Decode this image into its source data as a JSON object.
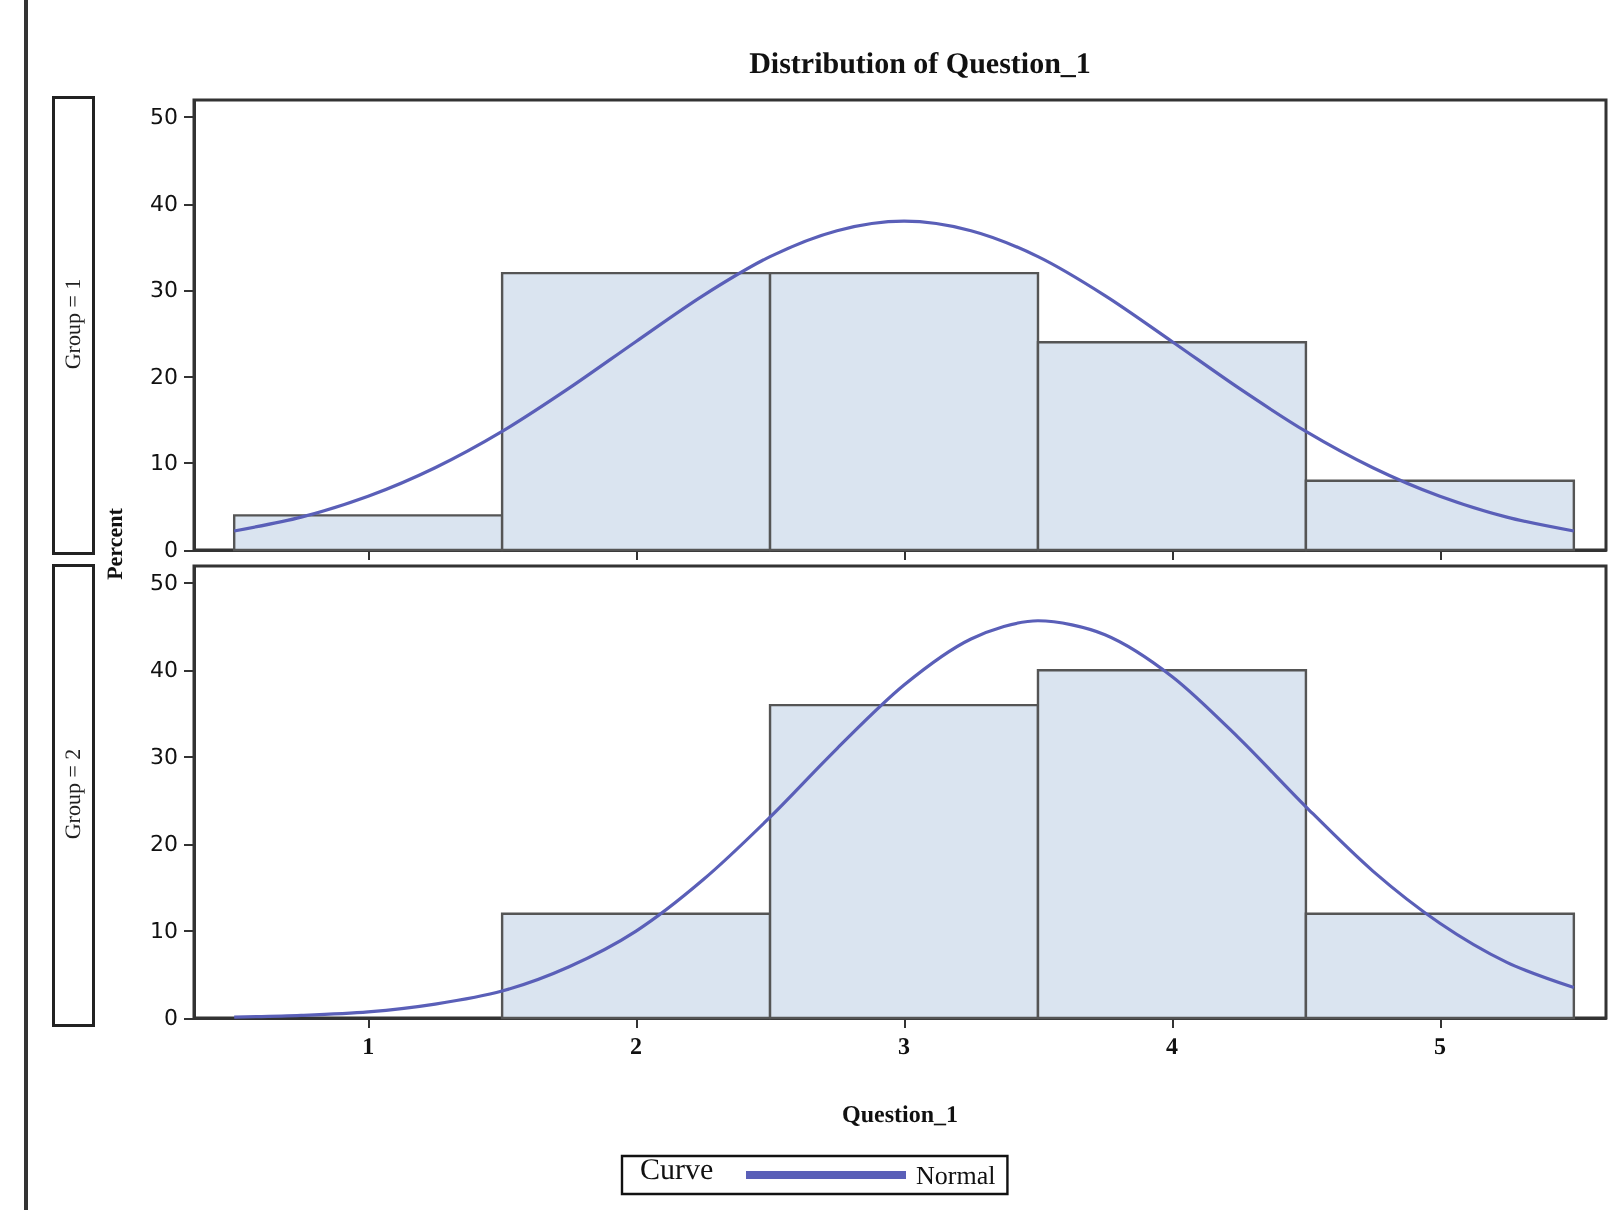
{
  "chart_data": [
    {
      "type": "histogram",
      "title": "Distribution of Question_1",
      "ylabel": "Percent",
      "annotations": [
        "Group = 1"
      ],
      "bins": [
        0.5,
        1.5,
        2.5,
        3.5,
        4.5,
        5.5
      ],
      "series": [
        {
          "color": "#dae4f0",
          "values": [
            4,
            32,
            32,
            24,
            8
          ]
        },
        {
          "type": "line",
          "color": "#5a5fb8",
          "x": [
            0.5,
            0.75,
            1.0,
            1.25,
            1.5,
            1.75,
            2.0,
            2.25,
            2.5,
            2.75,
            3.0,
            3.25,
            3.5,
            3.75,
            4.0,
            4.25,
            4.5,
            4.75,
            5.0,
            5.25,
            5.5
          ],
          "values": [
            2.2,
            3.8,
            6.2,
            9.5,
            13.7,
            18.7,
            24.1,
            29.4,
            33.9,
            36.9,
            38.0,
            36.9,
            33.9,
            29.4,
            24.1,
            18.7,
            13.7,
            9.5,
            6.2,
            3.8,
            2.2
          ]
        }
      ],
      "xlim": [
        0.35,
        5.62
      ],
      "xticks": [
        1,
        2,
        3,
        4,
        5
      ],
      "ylim": [
        0,
        52
      ],
      "yticks": [
        0,
        10,
        20,
        30,
        40,
        50
      ],
      "tick_labels": "y",
      "grid": false,
      "legend": false
    },
    {
      "type": "histogram",
      "xlabel": "Question_1",
      "annotations": [
        "Group = 2"
      ],
      "legend_title": "Curve",
      "bins": [
        0.5,
        1.5,
        2.5,
        3.5,
        4.5,
        5.5
      ],
      "series": [
        {
          "color": "#dae4f0",
          "values": [
            0,
            12,
            36,
            40,
            12
          ]
        },
        {
          "type": "line",
          "name": "Normal",
          "color": "#5a5fb8",
          "x": [
            0.5,
            0.75,
            1.0,
            1.25,
            1.5,
            1.75,
            2.0,
            2.25,
            2.5,
            2.75,
            3.0,
            3.25,
            3.5,
            3.75,
            4.0,
            4.25,
            4.5,
            4.75,
            5.0,
            5.25,
            5.5
          ],
          "values": [
            0.1,
            0.3,
            0.7,
            1.6,
            3.1,
            5.9,
            10.0,
            15.9,
            23.1,
            31.0,
            38.3,
            43.6,
            45.7,
            44.1,
            39.3,
            32.2,
            24.3,
            16.9,
            10.9,
            6.4,
            3.5
          ]
        }
      ],
      "xlim": [
        0.35,
        5.62
      ],
      "xticks": [
        1,
        2,
        3,
        4,
        5
      ],
      "ylim": [
        0,
        52
      ],
      "yticks": [
        0,
        10,
        20,
        30,
        40,
        50
      ],
      "grid": false,
      "legend": "bottom"
    }
  ]
}
